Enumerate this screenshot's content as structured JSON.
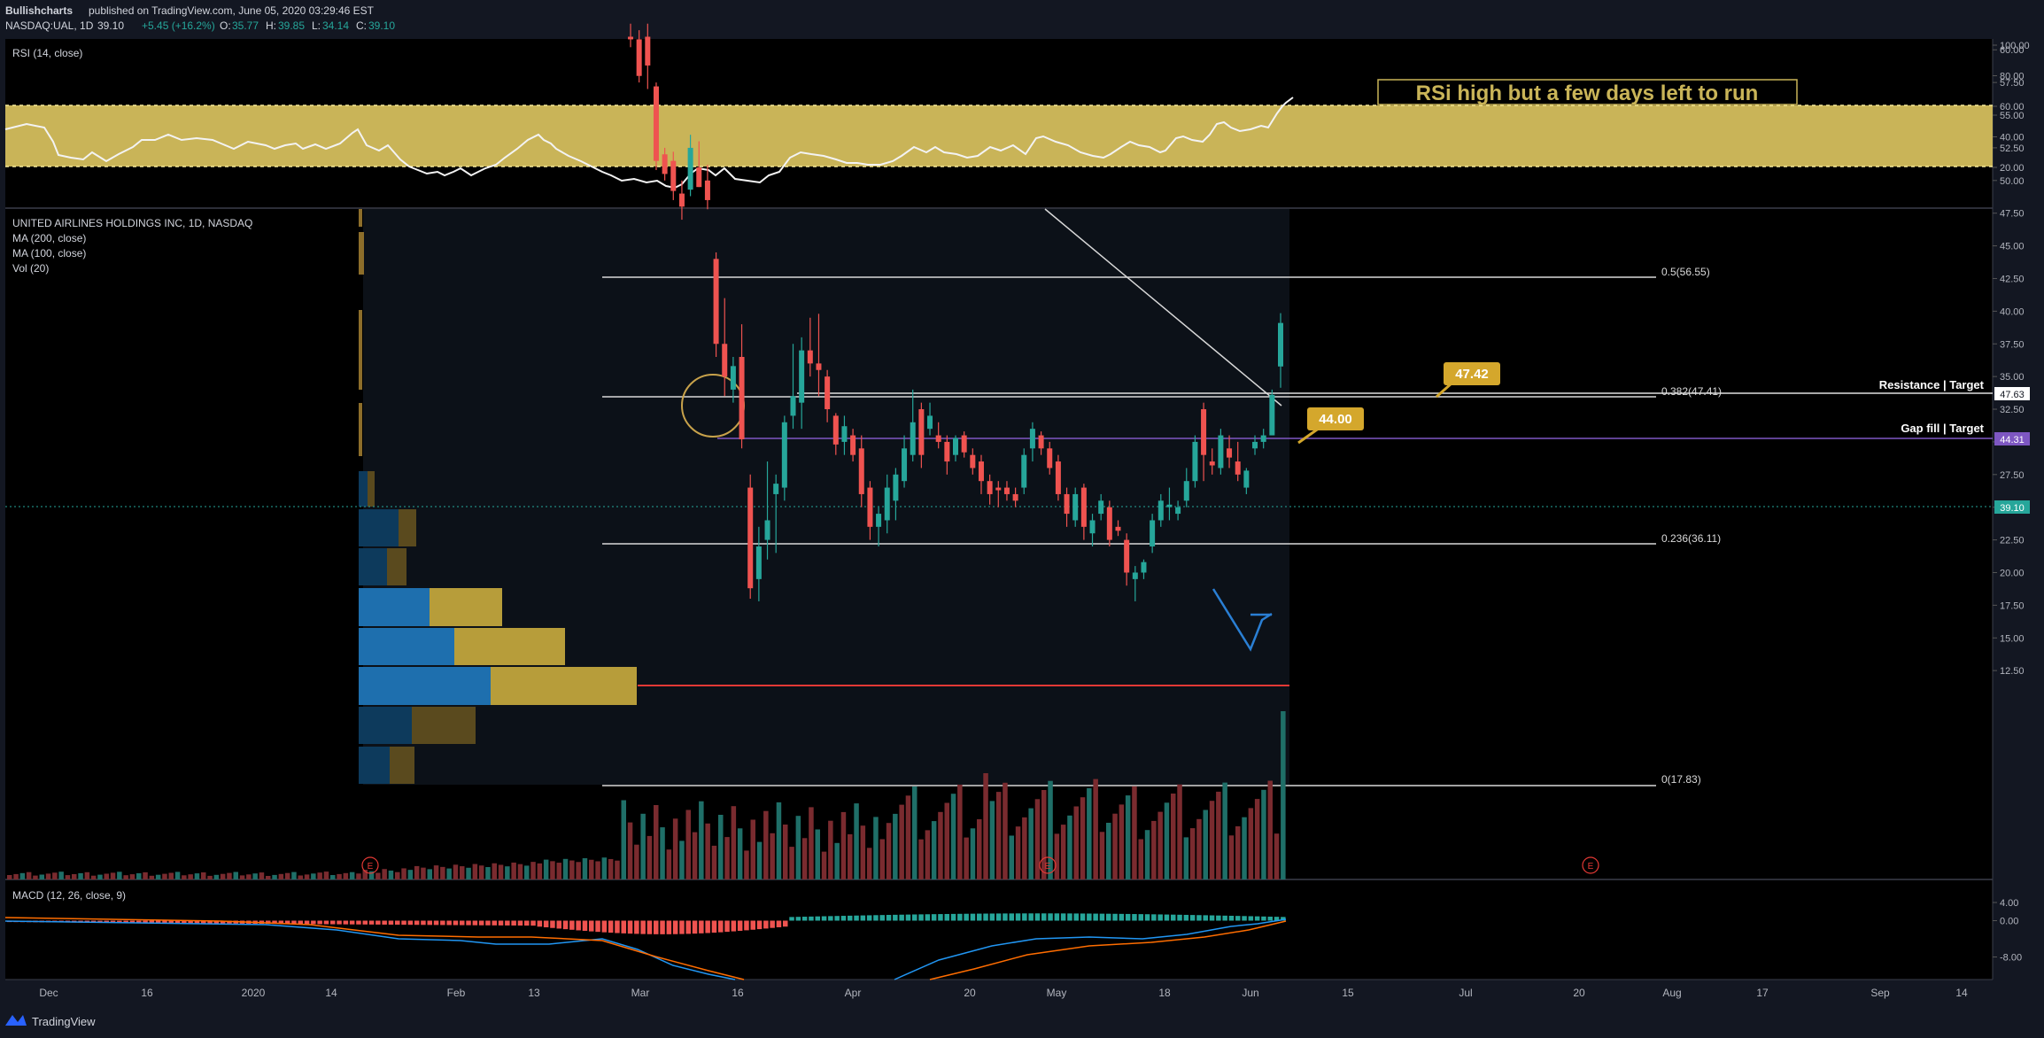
{
  "header": {
    "author": "Bullishcharts",
    "published_text": "published on TradingView.com, June 05, 2020 03:29:46 EST",
    "symbol": "NASDAQ:UAL, 1D",
    "last": "39.10",
    "change": "+5.45 (+16.2%)",
    "o_label": "O:",
    "o": "35.77",
    "h_label": "H:",
    "h": "39.85",
    "l_label": "L:",
    "l": "34.14",
    "c_label": "C:",
    "c": "39.10"
  },
  "rsi_panel": {
    "title": "RSI (14, close)",
    "annotation": "RSi high but a few days left to run",
    "ticks": [
      "100.00",
      "80.00",
      "60.00",
      "40.00",
      "20.00"
    ]
  },
  "price_panel": {
    "title": "UNITED AIRLINES HOLDINGS INC, 1D, NASDAQ",
    "indicators": [
      "MA (200, close)",
      "MA (100, close)",
      "Vol (20)"
    ],
    "ticks": [
      "60.00",
      "57.50",
      "55.00",
      "52.50",
      "50.00",
      "47.50",
      "45.00",
      "42.50",
      "40.00",
      "37.50",
      "35.00",
      "32.50",
      "30.00",
      "27.50",
      "25.00",
      "22.50",
      "20.00",
      "17.50",
      "15.00",
      "12.50"
    ],
    "fib_labels": [
      "0.5(56.55)",
      "0.382(47.41)",
      "0.236(36.11)",
      "0(17.83)"
    ],
    "target_labels": [
      "Resistance | Target",
      "Gap fill | Target"
    ],
    "callouts": [
      "47.42",
      "44.00"
    ],
    "price_badges": [
      "47.63",
      "44.31",
      "39.10"
    ],
    "earnings_marker": "E"
  },
  "macd_panel": {
    "title": "MACD (12, 26, close, 9)",
    "ticks": [
      "4.00",
      "0.00",
      "-8.00"
    ]
  },
  "time_axis": [
    "Dec",
    "16",
    "2020",
    "14",
    "Feb",
    "13",
    "Mar",
    "16",
    "Apr",
    "20",
    "May",
    "18",
    "Jun",
    "15",
    "Jul",
    "20",
    "Aug",
    "17",
    "Sep",
    "14"
  ],
  "footer": {
    "brand": "TradingView"
  },
  "colors": {
    "background": "#131722",
    "up": "#26a69a",
    "down": "#ef5350",
    "rsi_band": "#c9b458",
    "accent_gold": "#d4a72c",
    "gap_fill": "#7e57c2",
    "poc_line": "#e53935"
  },
  "chart_data": {
    "type": "candlestick",
    "symbol": "NASDAQ:UAL",
    "interval": "1D",
    "price_ylim": [
      11,
      63
    ],
    "fib_levels": [
      {
        "label": "0.5(56.55)",
        "value": 56.55
      },
      {
        "label": "0.382(47.41)",
        "value": 47.41
      },
      {
        "label": "0.236(36.11)",
        "value": 36.11
      },
      {
        "label": "0(17.83)",
        "value": 17.83
      }
    ],
    "horizontal_levels": [
      {
        "label": "Resistance | Target",
        "value": 47.63
      },
      {
        "label": "Gap fill | Target",
        "value": 44.31
      },
      {
        "label": "",
        "value": 39.1
      },
      {
        "label": "",
        "value": 25.3
      }
    ],
    "candles": [
      {
        "date": "2020-02-26",
        "o": 61.0,
        "h": 62.0,
        "l": 60.2,
        "c": 60.8
      },
      {
        "date": "2020-02-27",
        "o": 60.8,
        "h": 61.5,
        "l": 57.5,
        "c": 58.0
      },
      {
        "date": "2020-02-28",
        "o": 61.0,
        "h": 62.0,
        "l": 57.0,
        "c": 58.8
      },
      {
        "date": "2020-03-02",
        "o": 57.2,
        "h": 57.5,
        "l": 50.8,
        "c": 51.5
      },
      {
        "date": "2020-03-03",
        "o": 52.0,
        "h": 52.5,
        "l": 50.0,
        "c": 50.5
      },
      {
        "date": "2020-03-04",
        "o": 51.5,
        "h": 52.2,
        "l": 48.5,
        "c": 49.2
      },
      {
        "date": "2020-03-05",
        "o": 49.0,
        "h": 50.0,
        "l": 47.0,
        "c": 48.0
      },
      {
        "date": "2020-03-06",
        "o": 49.3,
        "h": 53.5,
        "l": 48.8,
        "c": 52.5
      },
      {
        "date": "2020-03-09",
        "o": 51.0,
        "h": 53.0,
        "l": 49.5,
        "c": 49.5
      },
      {
        "date": "2020-03-10",
        "o": 50.0,
        "h": 51.2,
        "l": 47.8,
        "c": 48.5
      },
      {
        "date": "2020-03-12",
        "o": 44.0,
        "h": 44.5,
        "l": 36.5,
        "c": 37.5
      },
      {
        "date": "2020-03-13",
        "o": 37.5,
        "h": 41.0,
        "l": 33.5,
        "c": 35.0
      },
      {
        "date": "2020-03-16",
        "o": 34.0,
        "h": 36.5,
        "l": 33.0,
        "c": 35.8
      },
      {
        "date": "2020-03-17",
        "o": 36.5,
        "h": 39.0,
        "l": 29.5,
        "c": 30.2
      },
      {
        "date": "2020-03-18",
        "o": 26.5,
        "h": 27.5,
        "l": 18.0,
        "c": 18.8
      },
      {
        "date": "2020-03-19",
        "o": 19.5,
        "h": 23.5,
        "l": 17.8,
        "c": 22.0
      },
      {
        "date": "2020-03-20",
        "o": 22.5,
        "h": 28.5,
        "l": 21.0,
        "c": 24.0
      },
      {
        "date": "2020-03-23",
        "o": 26.0,
        "h": 27.5,
        "l": 21.5,
        "c": 26.8
      },
      {
        "date": "2020-03-24",
        "o": 26.5,
        "h": 32.0,
        "l": 25.5,
        "c": 31.5
      },
      {
        "date": "2020-03-25",
        "o": 32.0,
        "h": 37.5,
        "l": 31.0,
        "c": 33.5
      },
      {
        "date": "2020-03-26",
        "o": 33.0,
        "h": 38.0,
        "l": 31.0,
        "c": 37.0
      },
      {
        "date": "2020-03-27",
        "o": 37.0,
        "h": 39.5,
        "l": 35.0,
        "c": 36.0
      },
      {
        "date": "2020-03-30",
        "o": 36.0,
        "h": 39.8,
        "l": 33.5,
        "c": 35.5
      },
      {
        "date": "2020-03-31",
        "o": 35.0,
        "h": 35.5,
        "l": 31.5,
        "c": 32.5
      },
      {
        "date": "2020-04-01",
        "o": 32.0,
        "h": 32.2,
        "l": 29.0,
        "c": 29.8
      },
      {
        "date": "2020-04-02",
        "o": 30.0,
        "h": 32.0,
        "l": 29.0,
        "c": 31.2
      },
      {
        "date": "2020-04-03",
        "o": 30.5,
        "h": 31.0,
        "l": 28.5,
        "c": 29.0
      },
      {
        "date": "2020-04-06",
        "o": 29.5,
        "h": 30.5,
        "l": 25.0,
        "c": 26.0
      },
      {
        "date": "2020-04-07",
        "o": 26.5,
        "h": 27.0,
        "l": 22.5,
        "c": 23.5
      },
      {
        "date": "2020-04-08",
        "o": 23.5,
        "h": 25.0,
        "l": 22.0,
        "c": 24.5
      },
      {
        "date": "2020-04-09",
        "o": 24.0,
        "h": 27.5,
        "l": 23.0,
        "c": 26.5
      },
      {
        "date": "2020-04-13",
        "o": 25.5,
        "h": 28.0,
        "l": 24.0,
        "c": 27.5
      },
      {
        "date": "2020-04-14",
        "o": 27.0,
        "h": 30.5,
        "l": 26.5,
        "c": 29.5
      },
      {
        "date": "2020-04-15",
        "o": 29.0,
        "h": 34.0,
        "l": 28.5,
        "c": 31.5
      },
      {
        "date": "2020-04-16",
        "o": 32.5,
        "h": 33.0,
        "l": 28.0,
        "c": 29.0
      },
      {
        "date": "2020-04-17",
        "o": 31.0,
        "h": 33.0,
        "l": 30.5,
        "c": 32.0
      },
      {
        "date": "2020-04-20",
        "o": 30.5,
        "h": 31.5,
        "l": 29.5,
        "c": 30.0
      },
      {
        "date": "2020-04-21",
        "o": 30.0,
        "h": 30.5,
        "l": 27.5,
        "c": 28.5
      },
      {
        "date": "2020-04-22",
        "o": 29.0,
        "h": 30.5,
        "l": 28.5,
        "c": 30.3
      },
      {
        "date": "2020-04-23",
        "o": 30.5,
        "h": 30.8,
        "l": 28.8,
        "c": 29.2
      },
      {
        "date": "2020-04-24",
        "o": 29.0,
        "h": 29.5,
        "l": 27.5,
        "c": 28.0
      },
      {
        "date": "2020-04-27",
        "o": 28.5,
        "h": 29.0,
        "l": 26.0,
        "c": 27.0
      },
      {
        "date": "2020-04-28",
        "o": 27.0,
        "h": 27.5,
        "l": 25.2,
        "c": 26.0
      },
      {
        "date": "2020-04-29",
        "o": 26.5,
        "h": 27.0,
        "l": 25.0,
        "c": 26.3
      },
      {
        "date": "2020-04-30",
        "o": 26.5,
        "h": 27.0,
        "l": 25.5,
        "c": 26.0
      },
      {
        "date": "2020-05-01",
        "o": 26.0,
        "h": 26.5,
        "l": 25.0,
        "c": 25.5
      },
      {
        "date": "2020-05-04",
        "o": 26.5,
        "h": 29.5,
        "l": 26.0,
        "c": 29.0
      },
      {
        "date": "2020-05-05",
        "o": 29.5,
        "h": 31.5,
        "l": 28.5,
        "c": 31.0
      },
      {
        "date": "2020-05-06",
        "o": 30.5,
        "h": 30.8,
        "l": 29.0,
        "c": 29.5
      },
      {
        "date": "2020-05-07",
        "o": 29.5,
        "h": 30.0,
        "l": 27.5,
        "c": 28.0
      },
      {
        "date": "2020-05-08",
        "o": 28.5,
        "h": 29.0,
        "l": 25.5,
        "c": 26.0
      },
      {
        "date": "2020-05-11",
        "o": 26.0,
        "h": 26.5,
        "l": 23.5,
        "c": 24.5
      },
      {
        "date": "2020-05-12",
        "o": 24.0,
        "h": 26.5,
        "l": 23.5,
        "c": 26.0
      },
      {
        "date": "2020-05-13",
        "o": 26.5,
        "h": 26.8,
        "l": 22.5,
        "c": 23.5
      },
      {
        "date": "2020-05-14",
        "o": 23.0,
        "h": 24.5,
        "l": 22.0,
        "c": 24.0
      },
      {
        "date": "2020-05-15",
        "o": 24.5,
        "h": 26.0,
        "l": 24.0,
        "c": 25.5
      },
      {
        "date": "2020-05-18",
        "o": 25.0,
        "h": 25.5,
        "l": 22.0,
        "c": 22.5
      },
      {
        "date": "2020-05-19",
        "o": 23.5,
        "h": 24.0,
        "l": 22.8,
        "c": 23.2
      },
      {
        "date": "2020-05-20",
        "o": 22.5,
        "h": 23.0,
        "l": 19.0,
        "c": 20.0
      },
      {
        "date": "2020-05-21",
        "o": 19.5,
        "h": 20.5,
        "l": 17.8,
        "c": 20.0
      },
      {
        "date": "2020-05-22",
        "o": 20.0,
        "h": 21.0,
        "l": 19.5,
        "c": 20.8
      },
      {
        "date": "2020-05-26",
        "o": 22.0,
        "h": 24.5,
        "l": 21.5,
        "c": 24.0
      },
      {
        "date": "2020-05-27",
        "o": 24.0,
        "h": 26.0,
        "l": 23.5,
        "c": 25.5
      },
      {
        "date": "2020-05-28",
        "o": 25.0,
        "h": 26.5,
        "l": 24.0,
        "c": 25.2
      },
      {
        "date": "2020-05-29",
        "o": 24.5,
        "h": 25.5,
        "l": 24.0,
        "c": 25.0
      },
      {
        "date": "2020-06-01",
        "o": 25.5,
        "h": 28.0,
        "l": 25.0,
        "c": 27.0
      },
      {
        "date": "2020-06-02",
        "o": 27.0,
        "h": 30.5,
        "l": 26.5,
        "c": 30.0
      },
      {
        "date": "2020-06-03",
        "o": 32.5,
        "h": 33.0,
        "l": 27.0,
        "c": 29.0
      },
      {
        "date": "2020-06-04",
        "o": 28.5,
        "h": 29.5,
        "l": 27.5,
        "c": 28.2
      },
      {
        "date": "2020-06-05",
        "o": 28.0,
        "h": 31.0,
        "l": 27.5,
        "c": 30.5
      },
      {
        "date": "2020-06-08",
        "o": 29.5,
        "h": 30.5,
        "l": 28.0,
        "c": 28.8
      },
      {
        "date": "2020-06-09",
        "o": 28.5,
        "h": 30.0,
        "l": 27.0,
        "c": 27.5
      },
      {
        "date": "2020-06-10",
        "o": 26.5,
        "h": 28.0,
        "l": 26.0,
        "c": 27.8
      },
      {
        "date": "2020-06-11",
        "o": 29.5,
        "h": 30.5,
        "l": 29.0,
        "c": 30.0
      },
      {
        "date": "2020-06-12",
        "o": 30.0,
        "h": 31.0,
        "l": 29.5,
        "c": 30.5
      },
      {
        "date": "2020-06-15",
        "o": 30.5,
        "h": 34.0,
        "l": 30.5,
        "c": 33.6
      },
      {
        "date": "2020-06-16",
        "o": 35.77,
        "h": 39.85,
        "l": 34.14,
        "c": 39.1
      }
    ]
  }
}
